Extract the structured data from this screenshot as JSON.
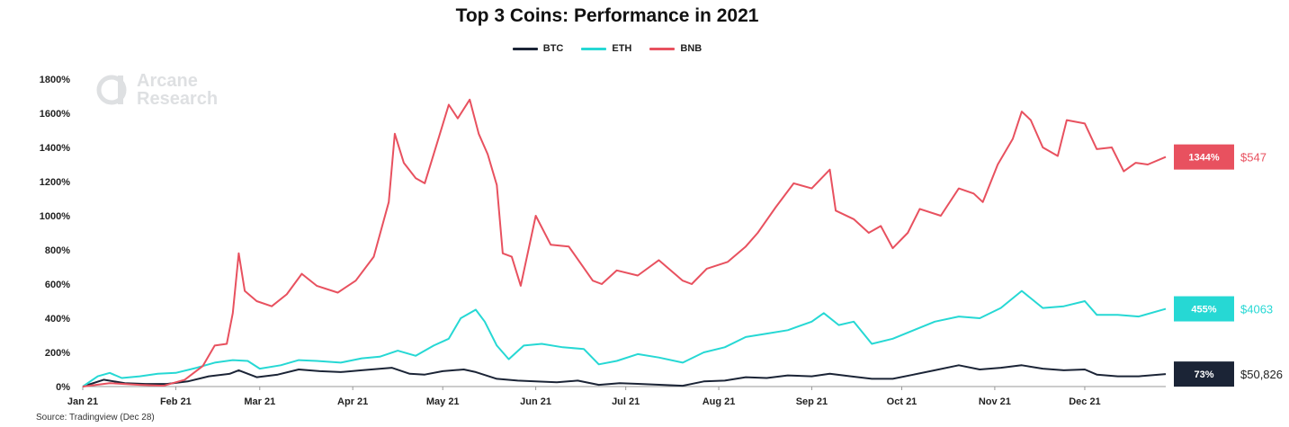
{
  "title": "Top 3 Coins: Performance in 2021",
  "source": "Source: Tradingview (Dec 28)",
  "watermark": {
    "line1": "Arcane",
    "line2": "Research"
  },
  "colors": {
    "BTC": "#1b2436",
    "ETH": "#26d8d4",
    "BNB": "#e8515f"
  },
  "chart_data": {
    "type": "line",
    "title": "Top 3 Coins: Performance in 2021",
    "ylim": [
      0,
      1800
    ],
    "yticks": [
      "0%",
      "200%",
      "400%",
      "600%",
      "800%",
      "1000%",
      "1200%",
      "1400%",
      "1600%",
      "1800%"
    ],
    "xticks": [
      "Jan 21",
      "Feb 21",
      "Mar 21",
      "Apr 21",
      "May 21",
      "Jun 21",
      "Jul 21",
      "Aug 21",
      "Sep 21",
      "Oct 21",
      "Nov 21",
      "Dec 21"
    ],
    "legend_position": "top-center",
    "series": [
      {
        "name": "BTC",
        "end_label": "73%",
        "end_price": "$50,826",
        "points": [
          [
            "2021-01-01",
            0
          ],
          [
            "2021-01-08",
            40
          ],
          [
            "2021-01-15",
            20
          ],
          [
            "2021-01-22",
            15
          ],
          [
            "2021-01-29",
            15
          ],
          [
            "2021-02-05",
            30
          ],
          [
            "2021-02-12",
            60
          ],
          [
            "2021-02-19",
            75
          ],
          [
            "2021-02-22",
            95
          ],
          [
            "2021-02-28",
            55
          ],
          [
            "2021-03-07",
            70
          ],
          [
            "2021-03-14",
            100
          ],
          [
            "2021-03-21",
            90
          ],
          [
            "2021-03-28",
            85
          ],
          [
            "2021-04-04",
            95
          ],
          [
            "2021-04-14",
            110
          ],
          [
            "2021-04-20",
            75
          ],
          [
            "2021-04-25",
            70
          ],
          [
            "2021-05-01",
            90
          ],
          [
            "2021-05-08",
            100
          ],
          [
            "2021-05-12",
            85
          ],
          [
            "2021-05-19",
            45
          ],
          [
            "2021-05-26",
            35
          ],
          [
            "2021-06-01",
            30
          ],
          [
            "2021-06-08",
            25
          ],
          [
            "2021-06-15",
            35
          ],
          [
            "2021-06-22",
            10
          ],
          [
            "2021-06-29",
            20
          ],
          [
            "2021-07-06",
            15
          ],
          [
            "2021-07-13",
            10
          ],
          [
            "2021-07-20",
            5
          ],
          [
            "2021-07-27",
            30
          ],
          [
            "2021-08-03",
            35
          ],
          [
            "2021-08-10",
            55
          ],
          [
            "2021-08-17",
            50
          ],
          [
            "2021-08-24",
            65
          ],
          [
            "2021-09-01",
            60
          ],
          [
            "2021-09-07",
            75
          ],
          [
            "2021-09-14",
            60
          ],
          [
            "2021-09-21",
            45
          ],
          [
            "2021-09-28",
            45
          ],
          [
            "2021-10-05",
            70
          ],
          [
            "2021-10-12",
            95
          ],
          [
            "2021-10-20",
            125
          ],
          [
            "2021-10-27",
            100
          ],
          [
            "2021-11-03",
            110
          ],
          [
            "2021-11-10",
            125
          ],
          [
            "2021-11-17",
            105
          ],
          [
            "2021-11-24",
            95
          ],
          [
            "2021-12-01",
            100
          ],
          [
            "2021-12-05",
            70
          ],
          [
            "2021-12-12",
            60
          ],
          [
            "2021-12-19",
            60
          ],
          [
            "2021-12-28",
            73
          ]
        ]
      },
      {
        "name": "ETH",
        "end_label": "455%",
        "end_price": "$4063",
        "points": [
          [
            "2021-01-01",
            0
          ],
          [
            "2021-01-06",
            60
          ],
          [
            "2021-01-10",
            80
          ],
          [
            "2021-01-14",
            50
          ],
          [
            "2021-01-20",
            60
          ],
          [
            "2021-01-26",
            75
          ],
          [
            "2021-02-01",
            80
          ],
          [
            "2021-02-08",
            110
          ],
          [
            "2021-02-14",
            140
          ],
          [
            "2021-02-20",
            155
          ],
          [
            "2021-02-25",
            150
          ],
          [
            "2021-03-01",
            105
          ],
          [
            "2021-03-08",
            125
          ],
          [
            "2021-03-14",
            155
          ],
          [
            "2021-03-20",
            150
          ],
          [
            "2021-03-28",
            140
          ],
          [
            "2021-04-04",
            165
          ],
          [
            "2021-04-10",
            175
          ],
          [
            "2021-04-16",
            210
          ],
          [
            "2021-04-22",
            180
          ],
          [
            "2021-04-28",
            240
          ],
          [
            "2021-05-03",
            280
          ],
          [
            "2021-05-07",
            400
          ],
          [
            "2021-05-12",
            450
          ],
          [
            "2021-05-15",
            380
          ],
          [
            "2021-05-19",
            240
          ],
          [
            "2021-05-23",
            160
          ],
          [
            "2021-05-28",
            240
          ],
          [
            "2021-06-03",
            250
          ],
          [
            "2021-06-10",
            230
          ],
          [
            "2021-06-17",
            220
          ],
          [
            "2021-06-22",
            130
          ],
          [
            "2021-06-28",
            150
          ],
          [
            "2021-07-05",
            190
          ],
          [
            "2021-07-12",
            170
          ],
          [
            "2021-07-20",
            140
          ],
          [
            "2021-07-27",
            200
          ],
          [
            "2021-08-03",
            230
          ],
          [
            "2021-08-10",
            290
          ],
          [
            "2021-08-17",
            310
          ],
          [
            "2021-08-24",
            330
          ],
          [
            "2021-09-01",
            380
          ],
          [
            "2021-09-05",
            430
          ],
          [
            "2021-09-10",
            360
          ],
          [
            "2021-09-15",
            380
          ],
          [
            "2021-09-21",
            250
          ],
          [
            "2021-09-28",
            280
          ],
          [
            "2021-10-05",
            330
          ],
          [
            "2021-10-12",
            380
          ],
          [
            "2021-10-20",
            410
          ],
          [
            "2021-10-27",
            400
          ],
          [
            "2021-11-03",
            460
          ],
          [
            "2021-11-10",
            560
          ],
          [
            "2021-11-17",
            460
          ],
          [
            "2021-11-24",
            470
          ],
          [
            "2021-12-01",
            500
          ],
          [
            "2021-12-05",
            420
          ],
          [
            "2021-12-12",
            420
          ],
          [
            "2021-12-19",
            410
          ],
          [
            "2021-12-28",
            455
          ]
        ]
      },
      {
        "name": "BNB",
        "end_label": "1344%",
        "end_price": "$547",
        "points": [
          [
            "2021-01-01",
            0
          ],
          [
            "2021-01-10",
            20
          ],
          [
            "2021-01-20",
            10
          ],
          [
            "2021-01-28",
            5
          ],
          [
            "2021-02-04",
            40
          ],
          [
            "2021-02-10",
            120
          ],
          [
            "2021-02-14",
            240
          ],
          [
            "2021-02-18",
            250
          ],
          [
            "2021-02-20",
            430
          ],
          [
            "2021-02-22",
            780
          ],
          [
            "2021-02-24",
            560
          ],
          [
            "2021-02-28",
            500
          ],
          [
            "2021-03-05",
            470
          ],
          [
            "2021-03-10",
            540
          ],
          [
            "2021-03-15",
            660
          ],
          [
            "2021-03-20",
            590
          ],
          [
            "2021-03-27",
            550
          ],
          [
            "2021-04-02",
            620
          ],
          [
            "2021-04-08",
            760
          ],
          [
            "2021-04-13",
            1080
          ],
          [
            "2021-04-15",
            1480
          ],
          [
            "2021-04-18",
            1310
          ],
          [
            "2021-04-22",
            1220
          ],
          [
            "2021-04-25",
            1190
          ],
          [
            "2021-04-29",
            1420
          ],
          [
            "2021-05-03",
            1650
          ],
          [
            "2021-05-06",
            1570
          ],
          [
            "2021-05-10",
            1680
          ],
          [
            "2021-05-13",
            1480
          ],
          [
            "2021-05-16",
            1360
          ],
          [
            "2021-05-19",
            1180
          ],
          [
            "2021-05-21",
            780
          ],
          [
            "2021-05-24",
            760
          ],
          [
            "2021-05-27",
            590
          ],
          [
            "2021-06-01",
            1000
          ],
          [
            "2021-06-06",
            830
          ],
          [
            "2021-06-12",
            820
          ],
          [
            "2021-06-20",
            620
          ],
          [
            "2021-06-23",
            600
          ],
          [
            "2021-06-28",
            680
          ],
          [
            "2021-07-05",
            650
          ],
          [
            "2021-07-12",
            740
          ],
          [
            "2021-07-20",
            620
          ],
          [
            "2021-07-23",
            600
          ],
          [
            "2021-07-28",
            690
          ],
          [
            "2021-08-04",
            730
          ],
          [
            "2021-08-10",
            820
          ],
          [
            "2021-08-14",
            900
          ],
          [
            "2021-08-20",
            1050
          ],
          [
            "2021-08-26",
            1190
          ],
          [
            "2021-09-01",
            1160
          ],
          [
            "2021-09-07",
            1270
          ],
          [
            "2021-09-09",
            1030
          ],
          [
            "2021-09-15",
            980
          ],
          [
            "2021-09-20",
            900
          ],
          [
            "2021-09-24",
            940
          ],
          [
            "2021-09-28",
            810
          ],
          [
            "2021-10-03",
            900
          ],
          [
            "2021-10-07",
            1040
          ],
          [
            "2021-10-14",
            1000
          ],
          [
            "2021-10-20",
            1160
          ],
          [
            "2021-10-25",
            1130
          ],
          [
            "2021-10-28",
            1080
          ],
          [
            "2021-11-02",
            1300
          ],
          [
            "2021-11-07",
            1450
          ],
          [
            "2021-11-10",
            1610
          ],
          [
            "2021-11-13",
            1560
          ],
          [
            "2021-11-17",
            1400
          ],
          [
            "2021-11-22",
            1350
          ],
          [
            "2021-11-25",
            1560
          ],
          [
            "2021-12-01",
            1540
          ],
          [
            "2021-12-05",
            1390
          ],
          [
            "2021-12-10",
            1400
          ],
          [
            "2021-12-14",
            1260
          ],
          [
            "2021-12-18",
            1310
          ],
          [
            "2021-12-22",
            1300
          ],
          [
            "2021-12-28",
            1344
          ]
        ]
      }
    ]
  }
}
